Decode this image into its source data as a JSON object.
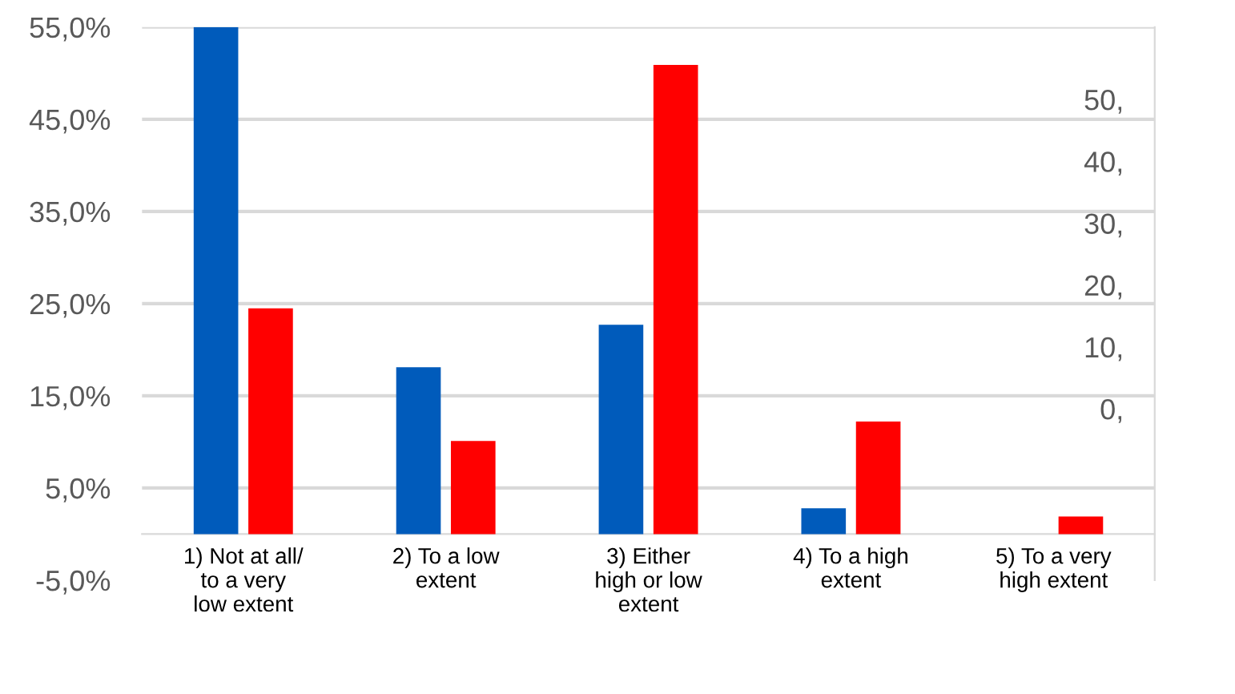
{
  "chart_data": {
    "type": "bar",
    "categories": [
      "1) Not at all/\nto a very\nlow extent",
      "2) To a low\nextent",
      "3) Either\nhigh or low\nextent",
      "4) To a high\nextent",
      "5) To a very\nhigh extent"
    ],
    "series": [
      {
        "color": "#005bbb",
        "values": [
          55.0,
          18.1,
          22.7,
          2.8,
          0
        ]
      },
      {
        "color": "#ff0000",
        "values": [
          24.5,
          10.1,
          50.9,
          12.2,
          1.9
        ]
      }
    ],
    "ylim": [
      -5,
      55
    ],
    "yticks": [
      {
        "value": -5,
        "label": "-5,0%"
      },
      {
        "value": 5,
        "label": "5,0%"
      },
      {
        "value": 15,
        "label": "15,0%"
      },
      {
        "value": 25,
        "label": "25,0%"
      },
      {
        "value": 35,
        "label": "35,0%"
      },
      {
        "value": 45,
        "label": "45,0%"
      },
      {
        "value": 55,
        "label": "55,0%"
      }
    ],
    "y2lim": [
      -27.7,
      61.7
    ],
    "y2ticks": [
      {
        "value": 0,
        "label": "0,"
      },
      {
        "value": 10,
        "label": "10,"
      },
      {
        "value": 20,
        "label": "20,"
      },
      {
        "value": 30,
        "label": "30,"
      },
      {
        "value": 40,
        "label": "40,"
      },
      {
        "value": 50,
        "label": "50,"
      }
    ],
    "grid": "y",
    "legend": false
  }
}
